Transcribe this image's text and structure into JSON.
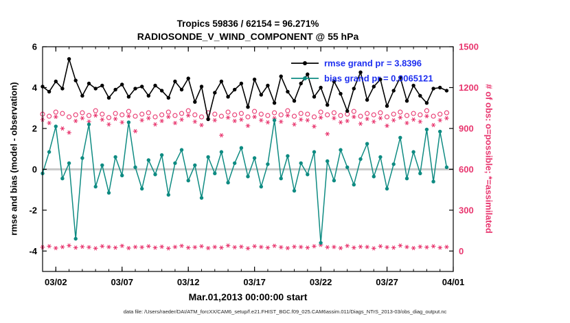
{
  "title": {
    "line1": "Tropics 59836 / 62154 = 96.271%",
    "line2": "RADIOSONDE_V_WIND_COMPONENT @ 55 hPa"
  },
  "axes": {
    "left_label": "rmse and bias (model - observation)",
    "right_label": "# of obs: o=possible; *=assimilated",
    "x_label": "Mar.01,2013 00:00:00 start",
    "left_ticks": [
      6,
      4,
      2,
      0,
      -2,
      -4
    ],
    "right_ticks": [
      1500,
      1200,
      900,
      600,
      300,
      0
    ],
    "x_tick_labels": [
      "03/02",
      "03/07",
      "03/12",
      "03/17",
      "03/22",
      "03/27",
      "04/01"
    ],
    "x_tick_days": [
      1,
      6,
      11,
      16,
      21,
      26,
      31
    ]
  },
  "legend": {
    "items": [
      {
        "label": "rmse grand pr = 3.8396",
        "line_color": "#000000"
      },
      {
        "label": "bias grand pr = 0.0065121",
        "line_color": "#0e8b82"
      }
    ],
    "text_color": "#1d2ff0"
  },
  "footer": "data file: /Users/raeder/DAI/ATM_forcXX/CAM6_setup/f.e21.FHIST_BGC.f09_025.CAM6assim.011/Diags_NTrS_2013-03/obs_diag_output.nc",
  "colors": {
    "rmse": "#000000",
    "bias": "#0e8b82",
    "obs": "#e8356e",
    "legend_text": "#1d2ff0",
    "zero_line": "#c8c8c8",
    "axis": "#000000"
  },
  "chart_data": {
    "type": "line",
    "title": "Tropics 59836 / 62154 = 96.271% | RADIOSONDE_V_WIND_COMPONENT @ 55 hPa",
    "xlabel": "Mar.01,2013 00:00:00 start",
    "ylabel_left": "rmse and bias (model - observation)",
    "ylabel_right": "# of obs: o=possible; *=assimilated",
    "x_start_day": 0,
    "x_step_days": 0.5,
    "n_points": 62,
    "x_range_days": [
      0,
      31
    ],
    "left_range": [
      -5,
      6
    ],
    "right_range": [
      -150,
      1500
    ],
    "grand_stats": {
      "rmse_grand_pr": 3.8396,
      "bias_grand_pr": 0.0065121
    },
    "series": [
      {
        "name": "rmse",
        "axis": "left",
        "marker": "filled-circle",
        "color": "#000000",
        "values": [
          4.05,
          3.8,
          4.3,
          3.95,
          5.4,
          4.35,
          3.6,
          4.2,
          3.95,
          4.1,
          3.5,
          3.9,
          4.15,
          3.55,
          3.95,
          4.05,
          3.6,
          4.1,
          3.85,
          3.5,
          4.3,
          3.9,
          4.45,
          3.3,
          4.05,
          2.45,
          3.75,
          4.3,
          3.55,
          3.9,
          4.2,
          3.05,
          4.4,
          3.65,
          4.1,
          3.25,
          4.55,
          3.8,
          3.35,
          4.2,
          4.65,
          3.55,
          4.0,
          3.15,
          4.3,
          3.7,
          2.85,
          3.95,
          4.75,
          3.4,
          4.05,
          4.4,
          3.1,
          3.85,
          4.5,
          3.35,
          4.1,
          3.6,
          3.25,
          3.95,
          4.0,
          3.85
        ]
      },
      {
        "name": "bias",
        "axis": "left",
        "marker": "filled-circle",
        "color": "#0e8b82",
        "values": [
          -0.2,
          0.85,
          2.1,
          -0.45,
          0.3,
          -3.4,
          0.55,
          2.2,
          -0.85,
          0.2,
          -1.15,
          0.6,
          -0.3,
          2.3,
          0.1,
          -0.95,
          0.45,
          -0.25,
          0.7,
          -1.25,
          0.3,
          0.95,
          -0.55,
          0.2,
          -1.4,
          0.6,
          -0.2,
          0.85,
          -0.65,
          0.3,
          1.05,
          -0.35,
          0.55,
          -0.85,
          0.25,
          2.4,
          -0.45,
          0.65,
          -1.05,
          0.3,
          -0.25,
          0.85,
          -3.6,
          0.4,
          -0.55,
          0.95,
          0.1,
          -0.75,
          0.5,
          1.25,
          -0.35,
          0.6,
          -0.95,
          0.25,
          1.55,
          -0.45,
          0.85,
          -0.2,
          1.95,
          -0.6,
          1.85,
          0.1
        ]
      },
      {
        "name": "possible_obs",
        "axis": "right",
        "marker": "open-circle",
        "color": "#e8356e",
        "values": [
          1005,
          990,
          1020,
          1010,
          985,
          1000,
          1015,
          995,
          1030,
          1005,
          980,
          1010,
          1000,
          1025,
          990,
          1005,
          1015,
          985,
          1000,
          1020,
          995,
          1010,
          1030,
          1000,
          985,
          1015,
          1005,
          990,
          1020,
          1000,
          1010,
          985,
          1025,
          1005,
          995,
          1015,
          1000,
          1030,
          990,
          1010,
          1005,
          985,
          1020,
          1000,
          1015,
          995,
          1005,
          1025,
          990,
          1010,
          1000,
          1015,
          985,
          1005,
          1020,
          995,
          1010,
          1000,
          1030,
          990,
          1005,
          1015
        ]
      },
      {
        "name": "assimilated_obs",
        "axis": "right",
        "marker": "asterisk",
        "color": "#e8356e",
        "values": [
          965,
          940,
          985,
          900,
          870,
          955,
          975,
          950,
          995,
          965,
          930,
          970,
          945,
          990,
          880,
          960,
          975,
          930,
          955,
          985,
          940,
          965,
          995,
          950,
          925,
          970,
          960,
          850,
          980,
          955,
          965,
          920,
          985,
          960,
          945,
          975,
          950,
          995,
          930,
          965,
          960,
          915,
          980,
          860,
          975,
          945,
          955,
          985,
          935,
          970,
          950,
          975,
          920,
          960,
          980,
          940,
          965,
          950,
          990,
          925,
          960,
          975
        ]
      },
      {
        "name": "bottom_row_obs",
        "axis": "right",
        "marker": "asterisk",
        "color": "#e8356e",
        "values": [
          28,
          35,
          22,
          30,
          40,
          25,
          32,
          28,
          20,
          35,
          30,
          25,
          38,
          22,
          30,
          28,
          35,
          25,
          32,
          20,
          30,
          38,
          25,
          28,
          35,
          22,
          30,
          25,
          40,
          28,
          32,
          20,
          35,
          30,
          25,
          38,
          28,
          22,
          32,
          30,
          25,
          35,
          45,
          28,
          30,
          22,
          38,
          25,
          32,
          30,
          20,
          35,
          28,
          25,
          40,
          30,
          22,
          32,
          28,
          35,
          25,
          30
        ]
      }
    ]
  }
}
